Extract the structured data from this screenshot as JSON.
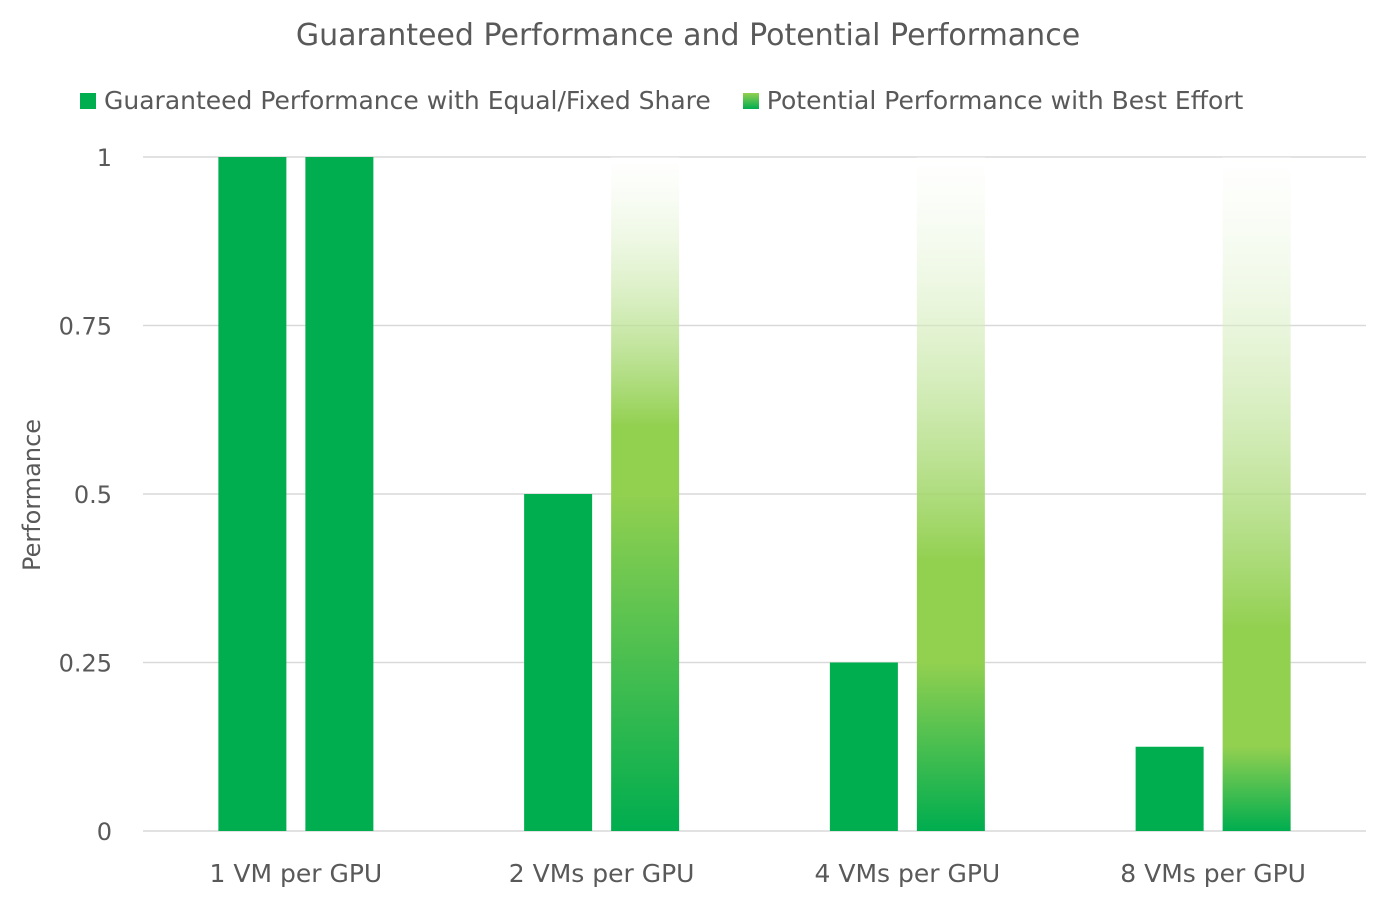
{
  "chart_data": {
    "type": "bar",
    "title": "Guaranteed Performance and Potential Performance",
    "xlabel": "",
    "ylabel": "Performance",
    "ylim": [
      0,
      1
    ],
    "yticks": [
      0,
      0.25,
      0.5,
      0.75,
      1
    ],
    "ytick_labels": [
      "0",
      "0.25",
      "0.5",
      "0.75",
      "1"
    ],
    "grid": true,
    "legend_placement": "top",
    "categories": [
      "1 VM per GPU",
      "2 VMs per GPU",
      "4 VMs per GPU",
      "8 VMs per GPU"
    ],
    "series": [
      {
        "name": "Guaranteed Performance with Equal/Fixed Share",
        "values": [
          1,
          0.5,
          0.25,
          0.125
        ],
        "color": "#00ad4f"
      },
      {
        "name": "Potential Performance with Best Effort",
        "values": [
          1,
          1,
          1,
          1
        ],
        "color": "#92d050",
        "fill": "gradient"
      }
    ]
  }
}
